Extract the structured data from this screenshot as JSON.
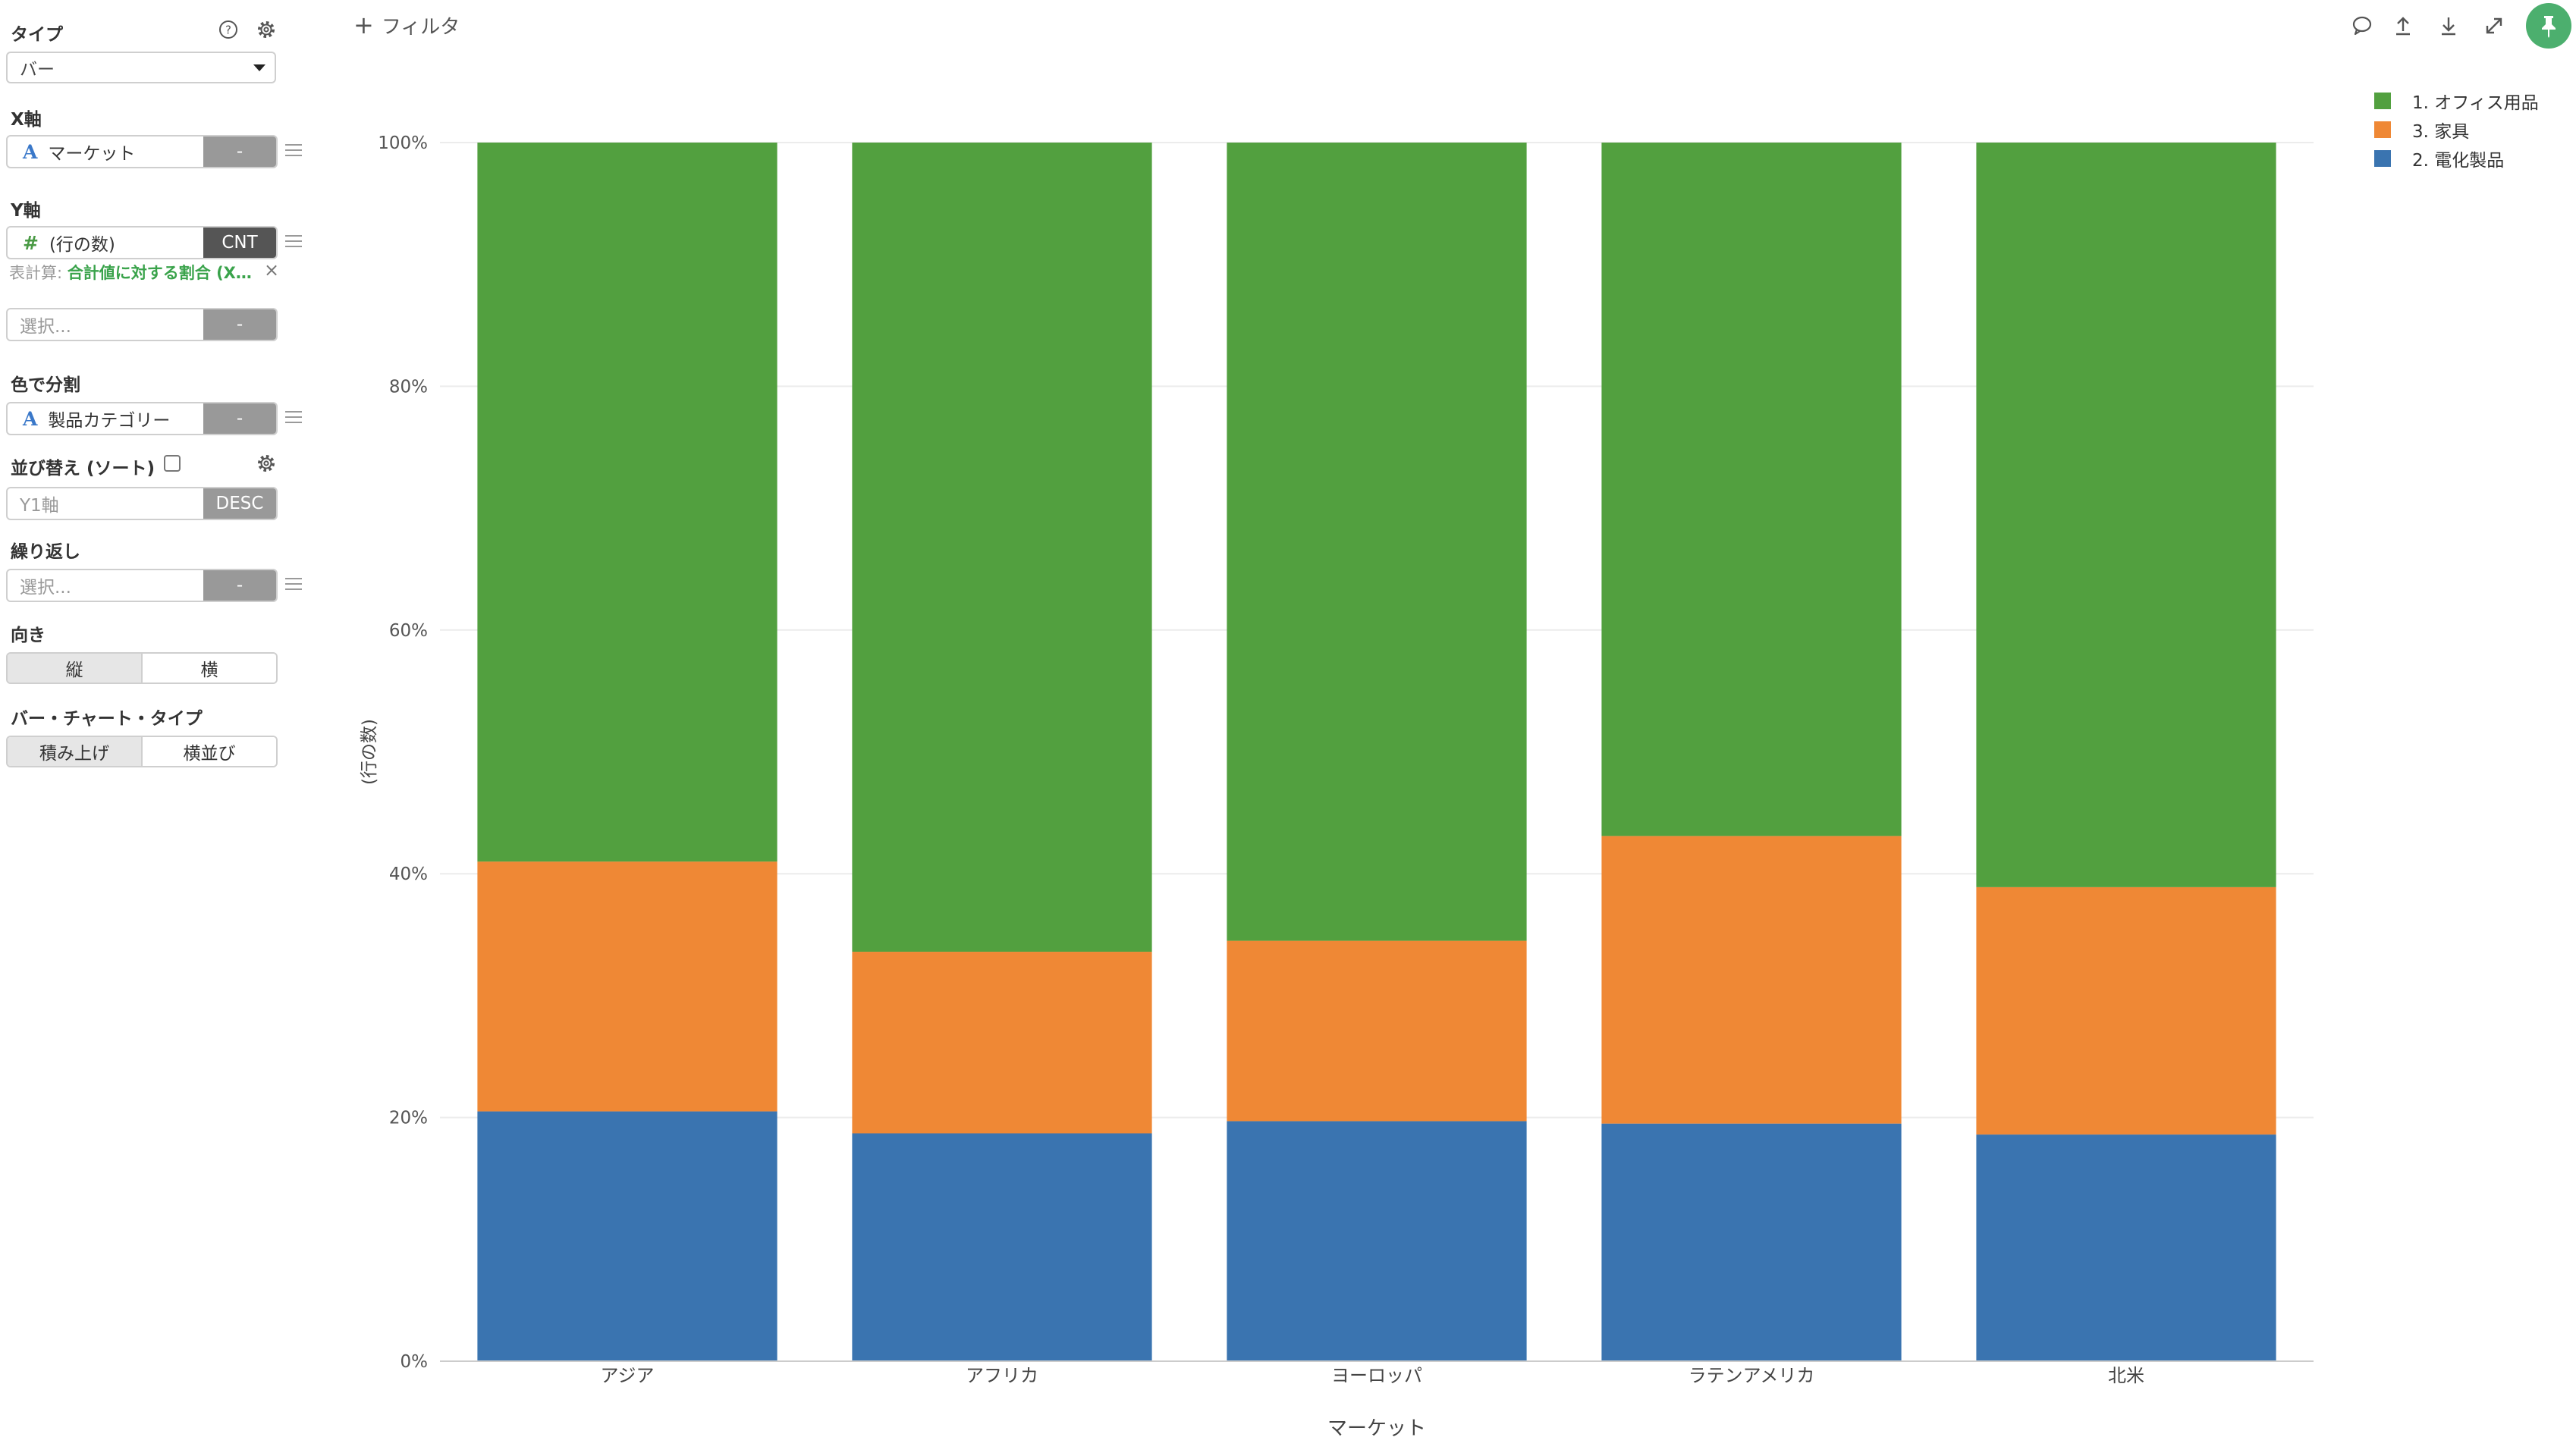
{
  "sidebar": {
    "type": {
      "label": "タイプ",
      "value": "バー"
    },
    "x_axis": {
      "label": "X軸",
      "field": "マーケット",
      "tag": "-"
    },
    "y_axis": {
      "label": "Y軸",
      "field": "(行の数)",
      "tag": "CNT",
      "calc_prefix": "表計算: ",
      "calc_value": "合計値に対する割合 (X…"
    },
    "y2": {
      "placeholder": "選択...",
      "tag": "-"
    },
    "color": {
      "label": "色で分割",
      "field": "製品カテゴリー",
      "tag": "-"
    },
    "sort": {
      "label": "並び替え (ソート)",
      "placeholder": "Y1軸",
      "tag": "DESC"
    },
    "repeat": {
      "label": "繰り返し",
      "placeholder": "選択...",
      "tag": "-"
    },
    "orientation": {
      "label": "向き",
      "options": [
        "縦",
        "横"
      ],
      "active": 0
    },
    "bar_type": {
      "label": "バー・チャート・タイプ",
      "options": [
        "積み上げ",
        "横並び"
      ],
      "active": 0
    }
  },
  "toolbar": {
    "filter_label": "フィルタ"
  },
  "colors": {
    "office": "#52a03f",
    "furniture": "#ef8835",
    "tech": "#3a74b0"
  },
  "chart_data": {
    "type": "bar",
    "stacked": true,
    "categories": [
      "アジア",
      "アフリカ",
      "ヨーロッパ",
      "ラテンアメリカ",
      "北米"
    ],
    "series": [
      {
        "name": "2. 電化製品",
        "color": "#3a74b0",
        "values": [
          20.5,
          18.7,
          19.7,
          19.5,
          18.6
        ]
      },
      {
        "name": "3. 家具",
        "color": "#ef8835",
        "values": [
          20.5,
          14.9,
          14.8,
          23.6,
          20.3
        ]
      },
      {
        "name": "1. オフィス用品",
        "color": "#52a03f",
        "values": [
          59.0,
          66.4,
          65.5,
          56.9,
          61.1
        ]
      }
    ],
    "legend_order": [
      2,
      1,
      0
    ],
    "legend_position": "top-right",
    "ylim": [
      0,
      100
    ],
    "yticks": [
      "0%",
      "20%",
      "40%",
      "60%",
      "80%",
      "100%"
    ],
    "ylabel": "(行の数)",
    "xlabel": "マーケット",
    "grid": true
  }
}
